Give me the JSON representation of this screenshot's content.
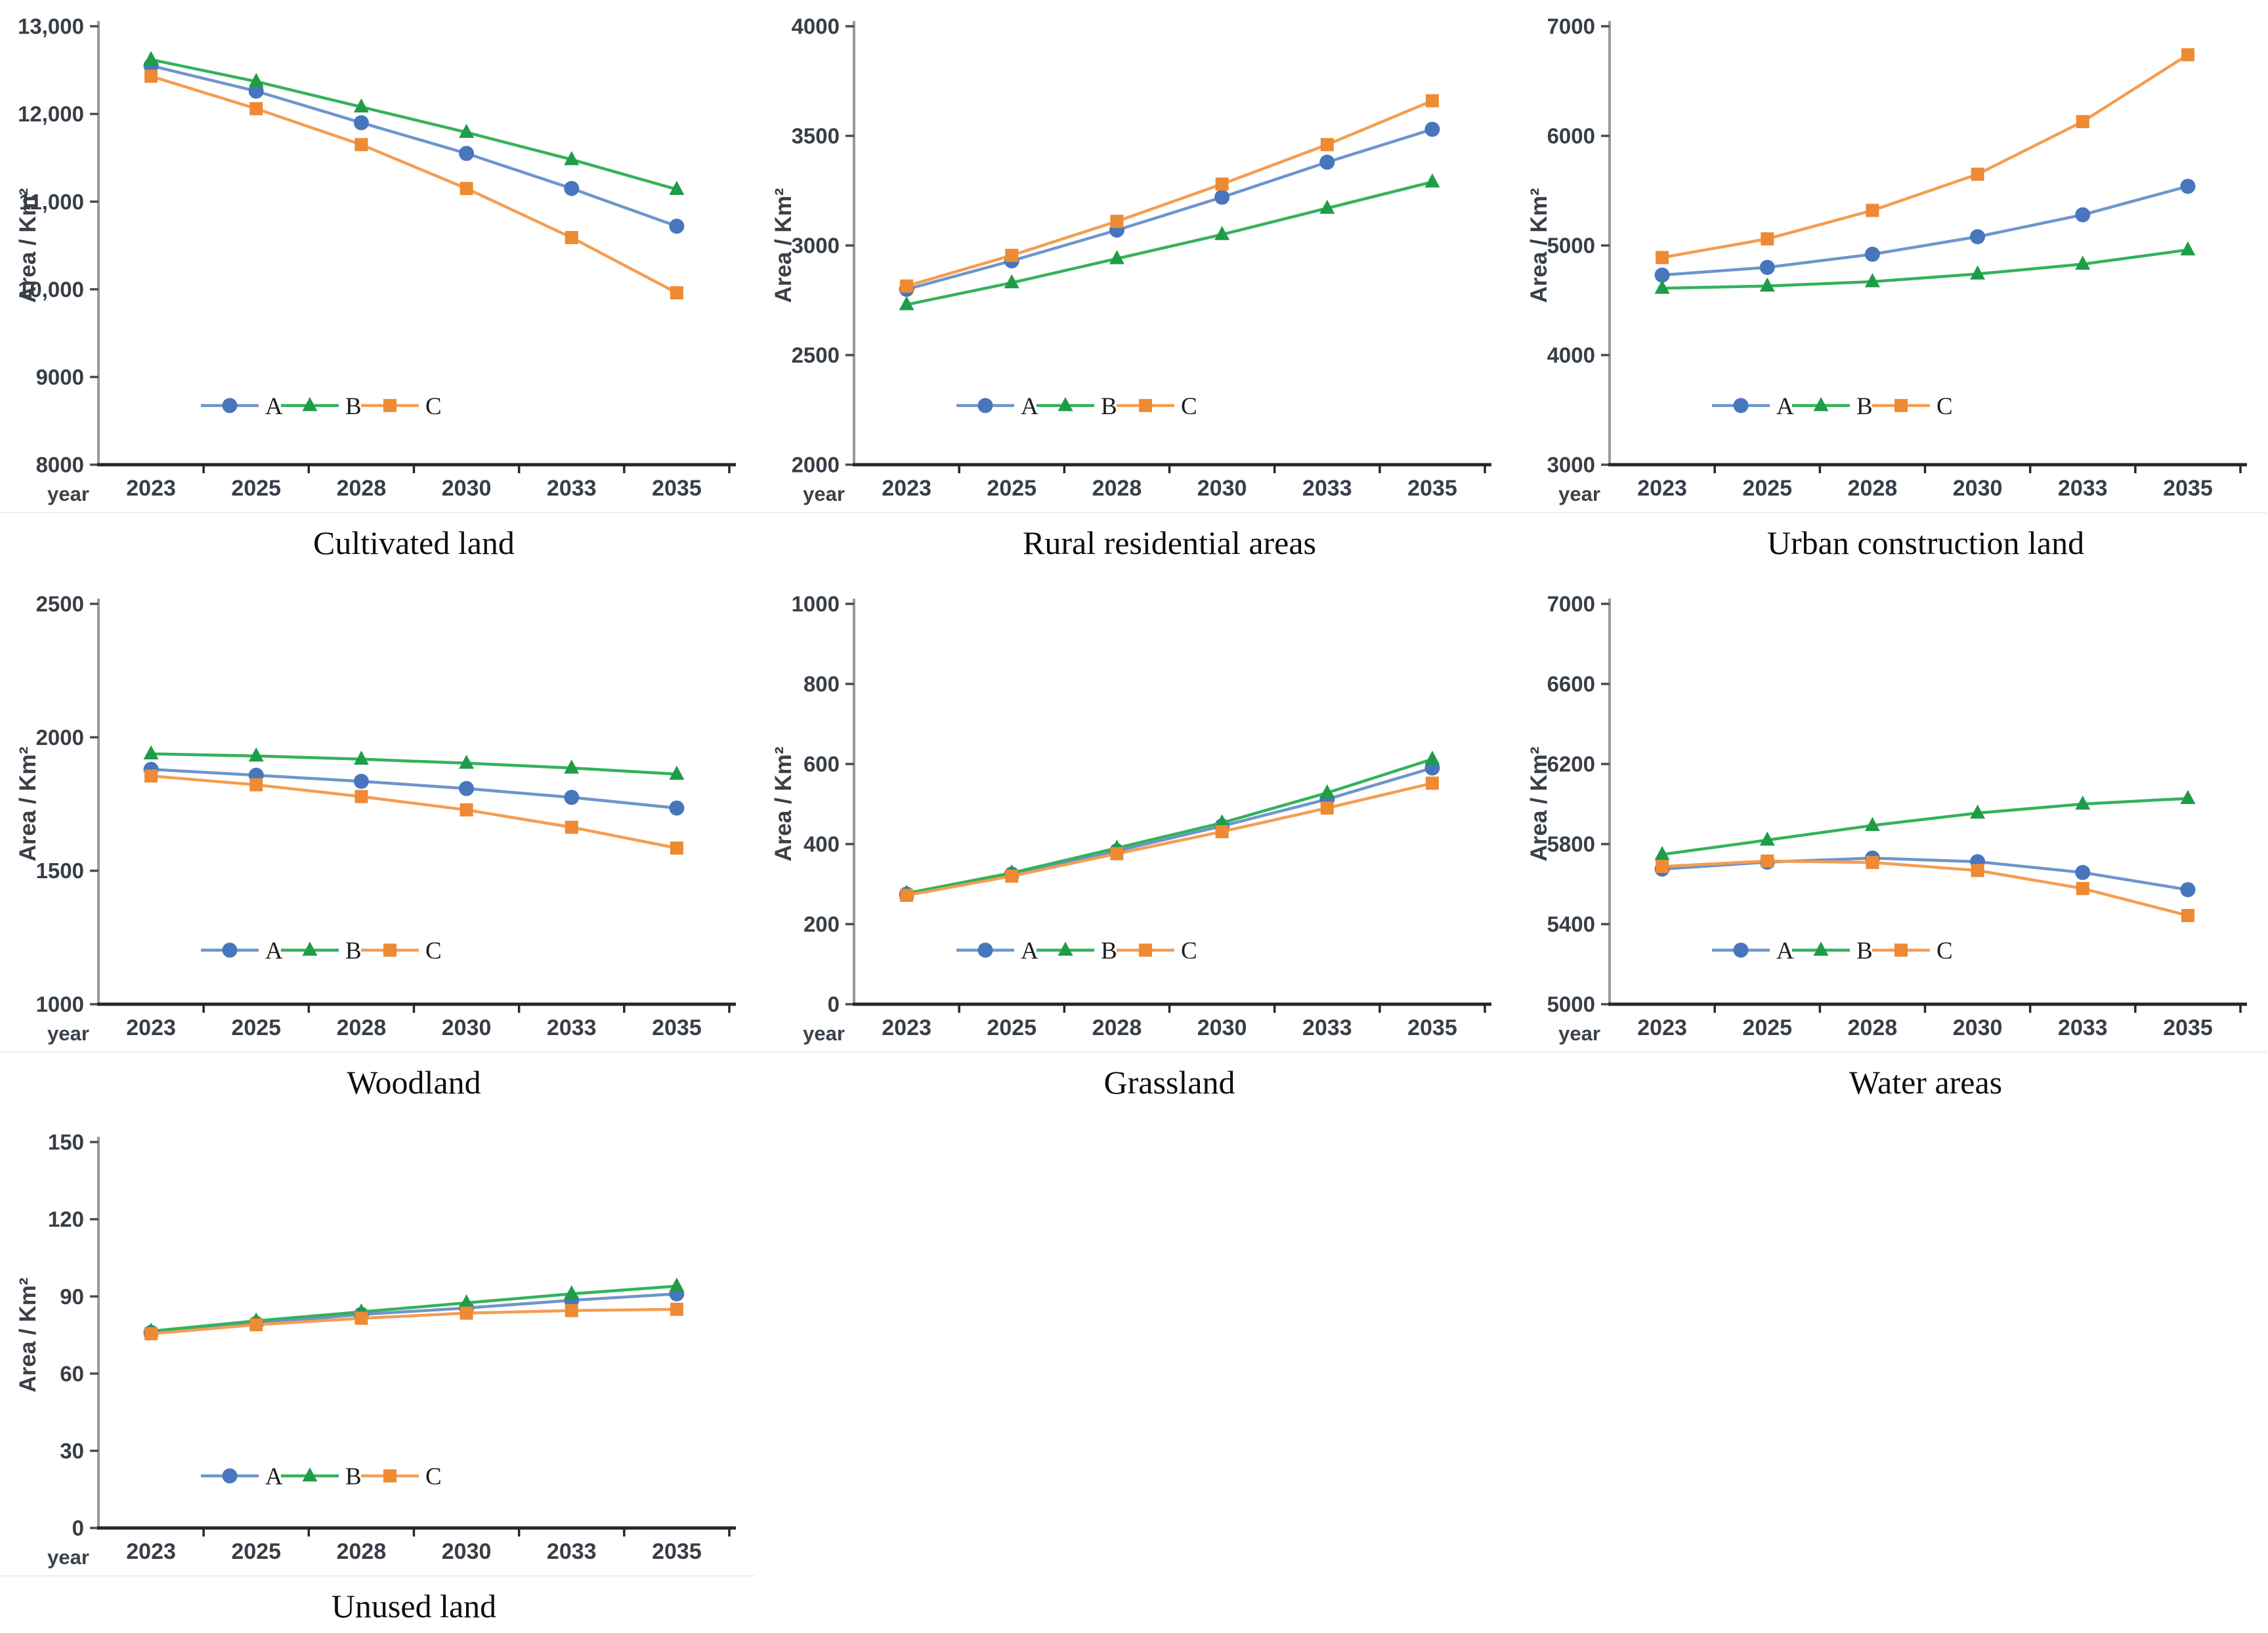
{
  "figure": {
    "background": "#ffffff",
    "x_label": "year",
    "y_label": "Area / Km²",
    "x_categories": [
      "2023",
      "2025",
      "2028",
      "2030",
      "2033",
      "2035"
    ],
    "legend": {
      "position": "lower-center",
      "labels": [
        "A",
        "B",
        "C"
      ]
    }
  },
  "series_styles": {
    "A": {
      "marker": "circle",
      "line_color": "#6E95CC",
      "marker_color": "#4776BC"
    },
    "B": {
      "marker": "triangle",
      "line_color": "#33B25B",
      "marker_color": "#1E9C47"
    },
    "C": {
      "marker": "square",
      "line_color": "#F49D51",
      "marker_color": "#ED8A33"
    }
  },
  "chart_data": [
    {
      "type": "line",
      "title": "Cultivated land",
      "xlabel": "year",
      "ylabel": "Area / Km²",
      "x": [
        "2023",
        "2025",
        "2028",
        "2030",
        "2033",
        "2035"
      ],
      "ylim": [
        8000,
        13000
      ],
      "yticks": [
        8000,
        9000,
        10000,
        11000,
        12000,
        13000
      ],
      "grid": false,
      "legend_position": "lower-center",
      "series": [
        {
          "name": "A",
          "marker": "circle",
          "values": [
            12550,
            12260,
            11900,
            11550,
            11150,
            10720
          ]
        },
        {
          "name": "B",
          "marker": "triangle",
          "values": [
            12620,
            12370,
            12080,
            11790,
            11480,
            11140
          ]
        },
        {
          "name": "C",
          "marker": "square",
          "values": [
            12430,
            12060,
            11650,
            11150,
            10590,
            9960
          ]
        }
      ]
    },
    {
      "type": "line",
      "title": "Rural residential areas",
      "xlabel": "year",
      "ylabel": "Area / Km²",
      "x": [
        "2023",
        "2025",
        "2028",
        "2030",
        "2033",
        "2035"
      ],
      "ylim": [
        2000,
        4000
      ],
      "yticks": [
        2000,
        2500,
        3000,
        3500,
        4000
      ],
      "grid": false,
      "legend_position": "lower-center",
      "series": [
        {
          "name": "A",
          "marker": "circle",
          "values": [
            2800,
            2930,
            3070,
            3220,
            3380,
            3530
          ]
        },
        {
          "name": "B",
          "marker": "triangle",
          "values": [
            2730,
            2830,
            2940,
            3050,
            3170,
            3290
          ]
        },
        {
          "name": "C",
          "marker": "square",
          "values": [
            2815,
            2955,
            3110,
            3280,
            3460,
            3660
          ]
        }
      ]
    },
    {
      "type": "line",
      "title": "Urban construction land",
      "xlabel": "year",
      "ylabel": "Area / Km²",
      "x": [
        "2023",
        "2025",
        "2028",
        "2030",
        "2033",
        "2035"
      ],
      "ylim": [
        3000,
        7000
      ],
      "yticks": [
        3000,
        4000,
        5000,
        6000,
        7000
      ],
      "grid": false,
      "legend_position": "lower-center",
      "series": [
        {
          "name": "A",
          "marker": "circle",
          "values": [
            4730,
            4800,
            4920,
            5080,
            5280,
            5540
          ]
        },
        {
          "name": "B",
          "marker": "triangle",
          "values": [
            4610,
            4630,
            4670,
            4740,
            4830,
            4960
          ]
        },
        {
          "name": "C",
          "marker": "square",
          "values": [
            4890,
            5060,
            5320,
            5650,
            6130,
            6740
          ]
        }
      ]
    },
    {
      "type": "line",
      "title": "Woodland",
      "xlabel": "year",
      "ylabel": "Area / Km²",
      "x": [
        "2023",
        "2025",
        "2028",
        "2030",
        "2033",
        "2035"
      ],
      "ylim": [
        1000,
        2500
      ],
      "yticks": [
        1000,
        1500,
        2000,
        2500
      ],
      "grid": false,
      "legend_position": "lower-center",
      "series": [
        {
          "name": "A",
          "marker": "circle",
          "values": [
            1880,
            1858,
            1835,
            1808,
            1775,
            1735
          ]
        },
        {
          "name": "B",
          "marker": "triangle",
          "values": [
            1938,
            1930,
            1918,
            1903,
            1885,
            1862
          ]
        },
        {
          "name": "C",
          "marker": "square",
          "values": [
            1855,
            1822,
            1778,
            1728,
            1663,
            1585
          ]
        }
      ]
    },
    {
      "type": "line",
      "title": "Grassland",
      "xlabel": "year",
      "ylabel": "Area / Km²",
      "x": [
        "2023",
        "2025",
        "2028",
        "2030",
        "2033",
        "2035"
      ],
      "ylim": [
        0,
        1000
      ],
      "yticks": [
        0,
        200,
        400,
        600,
        800,
        1000
      ],
      "grid": false,
      "legend_position": "lower-center",
      "series": [
        {
          "name": "A",
          "marker": "circle",
          "values": [
            275,
            325,
            383,
            445,
            512,
            590
          ]
        },
        {
          "name": "B",
          "marker": "triangle",
          "values": [
            277,
            328,
            390,
            453,
            528,
            612
          ]
        },
        {
          "name": "C",
          "marker": "square",
          "values": [
            272,
            320,
            376,
            431,
            490,
            552
          ]
        }
      ]
    },
    {
      "type": "line",
      "title": "Water areas",
      "xlabel": "year",
      "ylabel": "Area / Km²",
      "x": [
        "2023",
        "2025",
        "2028",
        "2030",
        "2033",
        "2035"
      ],
      "ylim": [
        5000,
        7000
      ],
      "yticks": [
        5000,
        5400,
        5800,
        6200,
        6600,
        7000
      ],
      "grid": false,
      "legend_position": "lower-center",
      "series": [
        {
          "name": "A",
          "marker": "circle",
          "values": [
            5675,
            5710,
            5730,
            5712,
            5658,
            5572
          ]
        },
        {
          "name": "B",
          "marker": "triangle",
          "values": [
            5748,
            5820,
            5893,
            5955,
            6000,
            6028
          ]
        },
        {
          "name": "C",
          "marker": "square",
          "values": [
            5688,
            5715,
            5708,
            5668,
            5578,
            5443
          ]
        }
      ]
    },
    {
      "type": "line",
      "title": "Unused land",
      "xlabel": "year",
      "ylabel": "Area / Km²",
      "x": [
        "2023",
        "2025",
        "2028",
        "2030",
        "2033",
        "2035"
      ],
      "ylim": [
        0,
        150
      ],
      "yticks": [
        0,
        30,
        60,
        90,
        120,
        150
      ],
      "grid": false,
      "legend_position": "lower-center",
      "series": [
        {
          "name": "A",
          "marker": "circle",
          "values": [
            76,
            79.5,
            83,
            85.5,
            88.5,
            91
          ]
        },
        {
          "name": "B",
          "marker": "triangle",
          "values": [
            76.5,
            80.5,
            84,
            87.5,
            91,
            94
          ]
        },
        {
          "name": "C",
          "marker": "square",
          "values": [
            75.5,
            79,
            81.5,
            83.5,
            84.5,
            85
          ]
        }
      ]
    }
  ]
}
